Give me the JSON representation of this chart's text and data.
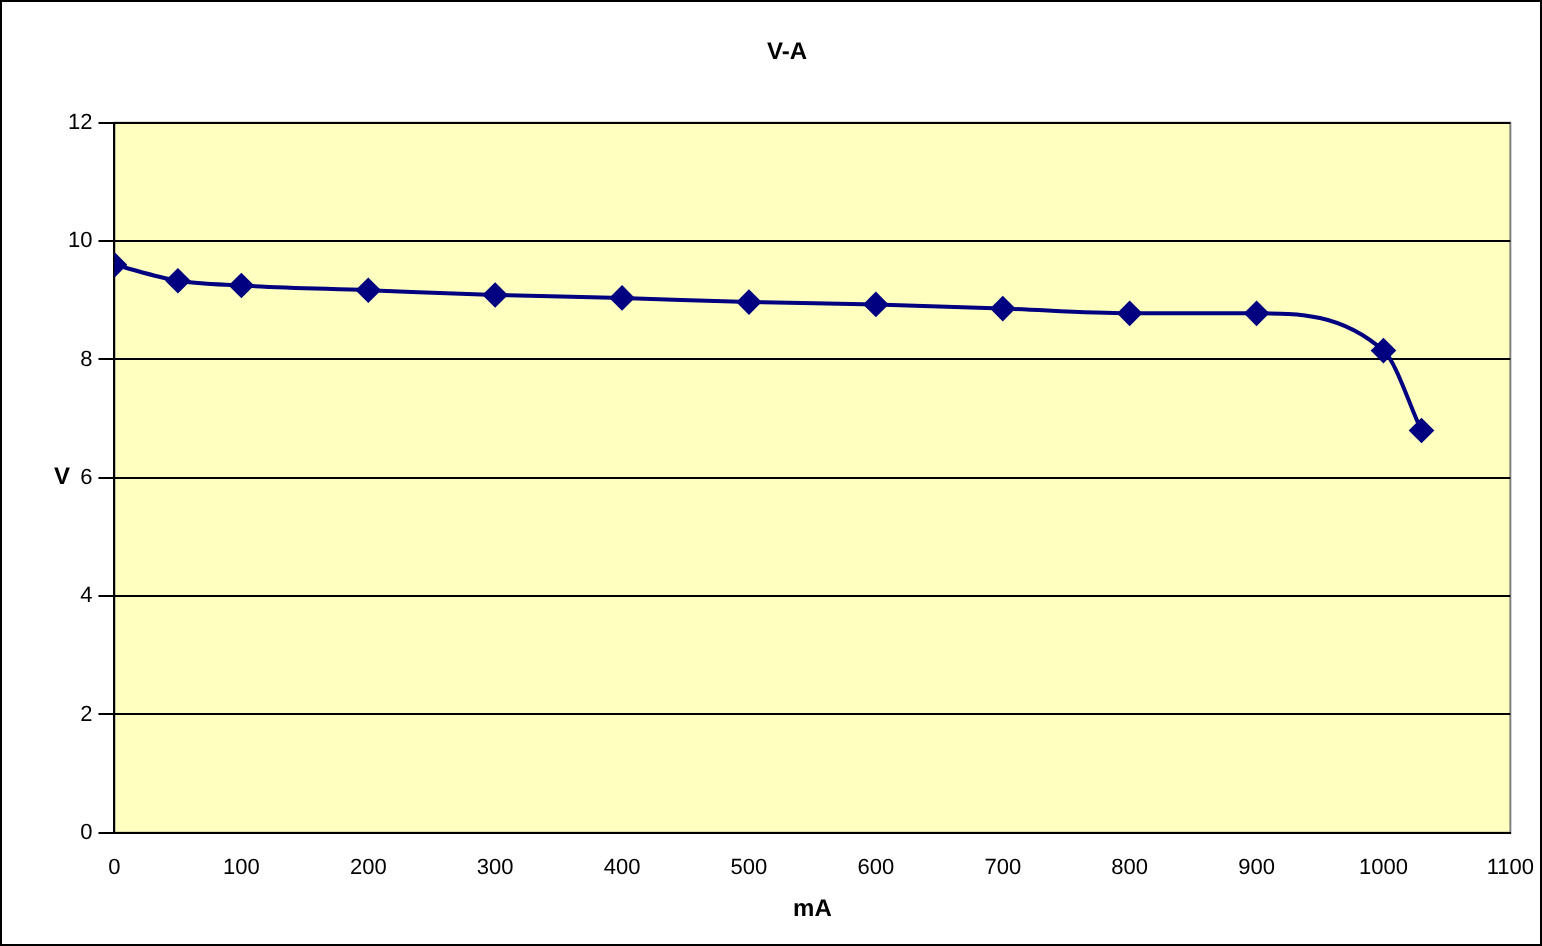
{
  "chart_data": {
    "type": "line",
    "title": "V-A",
    "xlabel": "mA",
    "ylabel": "V",
    "x": [
      0,
      50,
      100,
      200,
      300,
      400,
      500,
      600,
      700,
      800,
      900,
      1000,
      1030
    ],
    "series": [
      {
        "color": "#000080",
        "values": [
          9.6,
          9.33,
          9.25,
          9.17,
          9.09,
          9.04,
          8.97,
          8.93,
          8.86,
          8.78,
          8.78,
          8.15,
          6.8
        ]
      }
    ],
    "xlim": [
      0,
      1100
    ],
    "xticks": [
      0,
      100,
      200,
      300,
      400,
      500,
      600,
      700,
      800,
      900,
      1000,
      1100
    ],
    "ylim": [
      0,
      12
    ],
    "yticks": [
      0,
      2,
      4,
      6,
      8,
      10,
      12
    ],
    "grid": "y",
    "marker": "diamond",
    "line_style": "solid",
    "legend": false
  }
}
